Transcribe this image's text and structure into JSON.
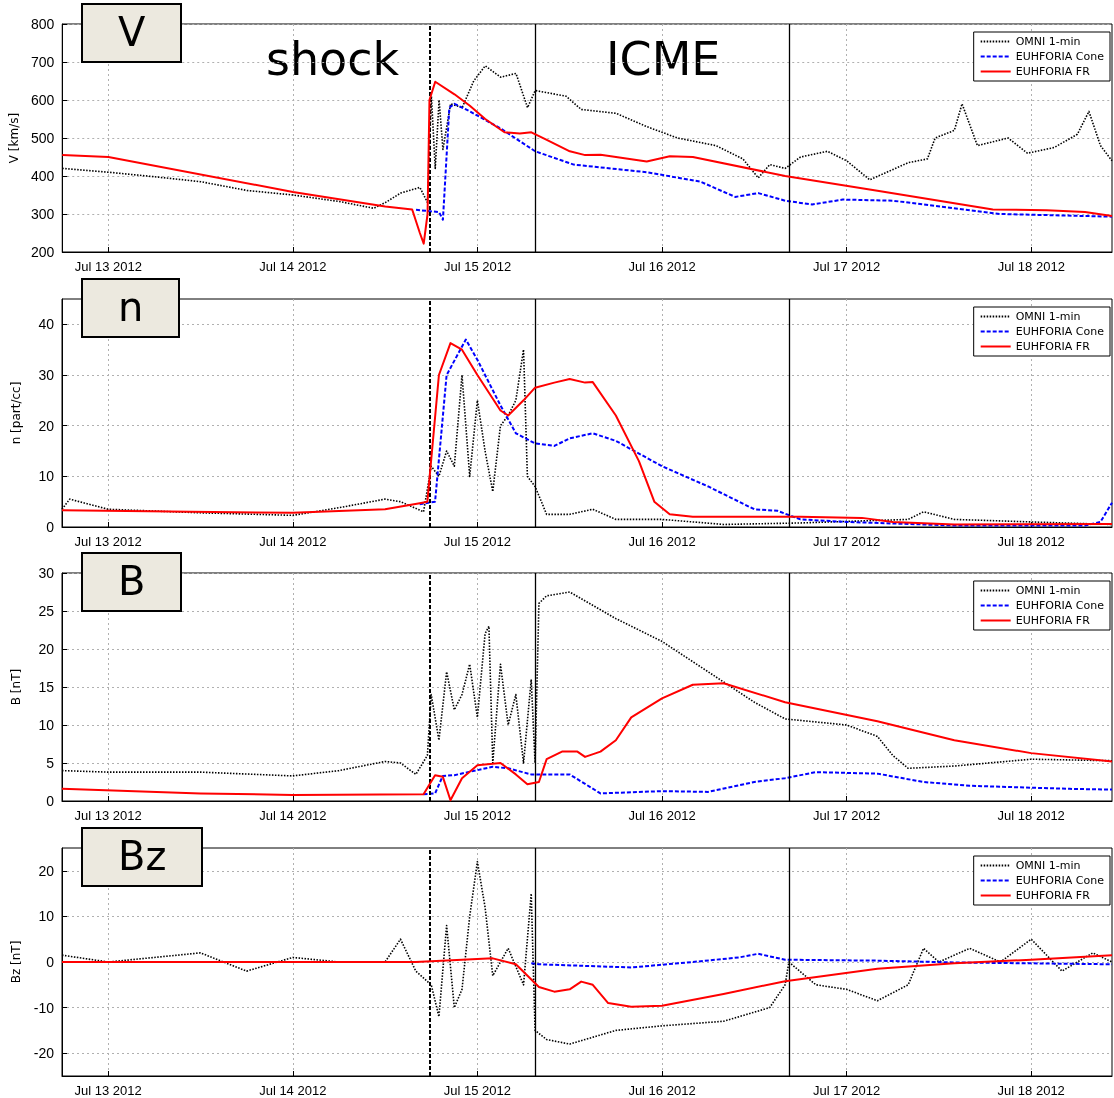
{
  "chart_data": [
    {
      "type": "line",
      "title": "V",
      "ylabel": "V [km/s]",
      "xlim": [
        "2012-07-12T18:00",
        "2012-07-18T10:30"
      ],
      "ylim": [
        200,
        800
      ],
      "yticks": [
        200,
        300,
        400,
        500,
        600,
        700,
        800
      ],
      "xticks": [
        {
          "value": "2012-07-13",
          "label": "Jul 13 2012"
        },
        {
          "value": "2012-07-14",
          "label": "Jul 14 2012"
        },
        {
          "value": "2012-07-15",
          "label": "Jul 15 2012"
        },
        {
          "value": "2012-07-16",
          "label": "Jul 16 2012"
        },
        {
          "value": "2012-07-17",
          "label": "Jul 17 2012"
        },
        {
          "value": "2012-07-18",
          "label": "Jul 18 2012"
        }
      ],
      "grid": true,
      "legend": "top right",
      "ref_lines": [
        {
          "axis": "x",
          "value": "2012-07-14T17:45",
          "color": "#000000",
          "line_style": "dashed"
        },
        {
          "axis": "x",
          "value": "2012-07-15T07:30",
          "color": "#000000",
          "line_style": "solid"
        },
        {
          "axis": "x",
          "value": "2012-07-16T16:30",
          "color": "#000000",
          "line_style": "solid"
        }
      ],
      "annotations": [
        "shock",
        "ICME"
      ],
      "series": [
        {
          "name": "OMNI 1-min",
          "color": "#000000",
          "line_style": "dotted",
          "x": [
            "2012-07-12T18:00",
            "2012-07-12T21:00",
            "2012-07-13T00:00",
            "2012-07-13T06:00",
            "2012-07-13T12:00",
            "2012-07-13T18:00",
            "2012-07-14T00:00",
            "2012-07-14T06:00",
            "2012-07-14T10:30",
            "2012-07-14T12:00",
            "2012-07-14T14:00",
            "2012-07-14T16:30",
            "2012-07-14T17:30",
            "2012-07-14T18:00",
            "2012-07-14T18:30",
            "2012-07-14T19:00",
            "2012-07-14T19:30",
            "2012-07-14T20:30",
            "2012-07-14T22:00",
            "2012-07-14T23:30",
            "2012-07-15T01:00",
            "2012-07-15T03:00",
            "2012-07-15T05:00",
            "2012-07-15T06:30",
            "2012-07-15T07:30",
            "2012-07-15T11:30",
            "2012-07-15T13:30",
            "2012-07-15T18:00",
            "2012-07-15T22:00",
            "2012-07-16T02:00",
            "2012-07-16T07:00",
            "2012-07-16T10:30",
            "2012-07-16T12:30",
            "2012-07-16T14:00",
            "2012-07-16T16:00",
            "2012-07-16T18:00",
            "2012-07-16T21:30",
            "2012-07-17T00:00",
            "2012-07-17T03:00",
            "2012-07-17T08:00",
            "2012-07-17T10:30",
            "2012-07-17T11:30",
            "2012-07-17T14:00",
            "2012-07-17T15:00",
            "2012-07-17T17:00",
            "2012-07-17T21:00",
            "2012-07-17T23:30",
            "2012-07-18T03:00",
            "2012-07-18T06:00",
            "2012-07-18T07:30",
            "2012-07-18T09:00",
            "2012-07-18T10:30"
          ],
          "values": [
            420,
            415,
            410,
            398,
            385,
            362,
            350,
            333,
            315,
            330,
            355,
            370,
            330,
            610,
            420,
            600,
            470,
            590,
            580,
            650,
            690,
            660,
            670,
            580,
            625,
            610,
            575,
            565,
            530,
            500,
            480,
            445,
            395,
            430,
            420,
            450,
            465,
            440,
            390,
            435,
            445,
            500,
            520,
            590,
            480,
            500,
            460,
            475,
            510,
            570,
            480,
            440
          ]
        },
        {
          "name": "EUHFORIA Cone",
          "color": "#0000ff",
          "line_style": "dashed",
          "x": [
            "2012-07-14T16:00",
            "2012-07-14T19:00",
            "2012-07-14T19:30",
            "2012-07-14T20:20",
            "2012-07-14T21:00",
            "2012-07-14T23:00",
            "2012-07-15T03:00",
            "2012-07-15T07:30",
            "2012-07-15T12:30",
            "2012-07-15T22:00",
            "2012-07-16T05:00",
            "2012-07-16T09:30",
            "2012-07-16T12:30",
            "2012-07-16T16:00",
            "2012-07-16T19:30",
            "2012-07-16T23:30",
            "2012-07-17T06:00",
            "2012-07-17T20:00",
            "2012-07-18T10:30"
          ],
          "values": [
            311,
            305,
            285,
            580,
            590,
            570,
            525,
            465,
            430,
            410,
            385,
            345,
            355,
            335,
            325,
            338,
            335,
            300,
            293
          ]
        },
        {
          "name": "EUHFORIA FR",
          "color": "#ff0000",
          "line_style": "solid",
          "x": [
            "2012-07-12T18:00",
            "2012-07-13T00:00",
            "2012-07-14T00:00",
            "2012-07-14T12:00",
            "2012-07-14T15:30",
            "2012-07-14T16:30",
            "2012-07-14T17:00",
            "2012-07-14T17:30",
            "2012-07-14T17:45",
            "2012-07-14T18:30",
            "2012-07-14T21:00",
            "2012-07-14T23:00",
            "2012-07-15T01:00",
            "2012-07-15T03:30",
            "2012-07-15T05:30",
            "2012-07-15T07:00",
            "2012-07-15T09:00",
            "2012-07-15T12:00",
            "2012-07-15T14:00",
            "2012-07-15T16:00",
            "2012-07-15T22:00",
            "2012-07-16T01:00",
            "2012-07-16T04:00",
            "2012-07-16T16:00",
            "2012-07-17T04:00",
            "2012-07-17T19:00",
            "2012-07-18T02:00",
            "2012-07-18T07:00",
            "2012-07-18T10:30"
          ],
          "values": [
            455,
            450,
            358,
            320,
            312,
            250,
            222,
            300,
            600,
            648,
            615,
            585,
            550,
            515,
            512,
            515,
            495,
            465,
            455,
            456,
            438,
            452,
            450,
            400,
            361,
            312,
            310,
            305,
            295
          ]
        }
      ]
    },
    {
      "type": "line",
      "title": "n",
      "ylabel": "n [part/cc]",
      "xlim": [
        "2012-07-12T18:00",
        "2012-07-18T10:30"
      ],
      "ylim": [
        0,
        45
      ],
      "yticks": [
        0,
        10,
        20,
        30,
        40
      ],
      "xticks": [
        {
          "value": "2012-07-13",
          "label": "Jul 13 2012"
        },
        {
          "value": "2012-07-14",
          "label": "Jul 14 2012"
        },
        {
          "value": "2012-07-15",
          "label": "Jul 15 2012"
        },
        {
          "value": "2012-07-16",
          "label": "Jul 16 2012"
        },
        {
          "value": "2012-07-17",
          "label": "Jul 17 2012"
        },
        {
          "value": "2012-07-18",
          "label": "Jul 18 2012"
        }
      ],
      "grid": true,
      "legend": "top right",
      "ref_lines": [
        {
          "axis": "x",
          "value": "2012-07-14T17:45",
          "color": "#000000",
          "line_style": "dashed"
        },
        {
          "axis": "x",
          "value": "2012-07-15T07:30",
          "color": "#000000",
          "line_style": "solid"
        },
        {
          "axis": "x",
          "value": "2012-07-16T16:30",
          "color": "#000000",
          "line_style": "solid"
        }
      ],
      "series": [
        {
          "name": "OMNI 1-min",
          "color": "#000000",
          "line_style": "dotted",
          "x": [
            "2012-07-12T18:00",
            "2012-07-12T19:00",
            "2012-07-13T00:00",
            "2012-07-13T12:00",
            "2012-07-14T00:00",
            "2012-07-14T06:00",
            "2012-07-14T12:00",
            "2012-07-14T14:00",
            "2012-07-14T17:00",
            "2012-07-14T18:00",
            "2012-07-14T19:00",
            "2012-07-14T20:00",
            "2012-07-14T21:00",
            "2012-07-14T22:00",
            "2012-07-14T23:00",
            "2012-07-15T00:00",
            "2012-07-15T01:00",
            "2012-07-15T02:00",
            "2012-07-15T03:00",
            "2012-07-15T04:00",
            "2012-07-15T05:00",
            "2012-07-15T06:00",
            "2012-07-15T06:30",
            "2012-07-15T07:30",
            "2012-07-15T09:00",
            "2012-07-15T12:00",
            "2012-07-15T15:00",
            "2012-07-15T18:00",
            "2012-07-16T00:00",
            "2012-07-16T08:00",
            "2012-07-16T18:00",
            "2012-07-17T08:00",
            "2012-07-17T10:00",
            "2012-07-17T14:00",
            "2012-07-18T00:00",
            "2012-07-18T10:30"
          ],
          "values": [
            3.5,
            5.5,
            3.5,
            2.8,
            2.3,
            3.8,
            5.5,
            5,
            3,
            12,
            10,
            15,
            12,
            30,
            10,
            25,
            15,
            7,
            20,
            22,
            25,
            35,
            10,
            8,
            2.5,
            2.5,
            3.5,
            1.5,
            1.5,
            0.5,
            0.8,
            1.5,
            3,
            1.5,
            1,
            0.5
          ]
        },
        {
          "name": "EUHFORIA Cone",
          "color": "#0000ff",
          "line_style": "dashed",
          "x": [
            "2012-07-14T16:30",
            "2012-07-14T18:30",
            "2012-07-14T20:00",
            "2012-07-14T22:30",
            "2012-07-15T00:00",
            "2012-07-15T03:00",
            "2012-07-15T05:00",
            "2012-07-15T07:30",
            "2012-07-15T10:00",
            "2012-07-15T12:00",
            "2012-07-15T15:00",
            "2012-07-15T18:00",
            "2012-07-16T00:00",
            "2012-07-16T06:00",
            "2012-07-16T12:00",
            "2012-07-16T15:00",
            "2012-07-16T18:00",
            "2012-07-17T00:00",
            "2012-07-17T14:00",
            "2012-07-18T07:00",
            "2012-07-18T09:00",
            "2012-07-18T10:30"
          ],
          "values": [
            4.5,
            5,
            30,
            37,
            33,
            24,
            18.5,
            16.5,
            16,
            17.5,
            18.5,
            17,
            12,
            8,
            3.5,
            3.2,
            1.5,
            1,
            0.3,
            0.3,
            1,
            4.8
          ]
        },
        {
          "name": "EUHFORIA FR",
          "color": "#ff0000",
          "line_style": "solid",
          "x": [
            "2012-07-12T18:00",
            "2012-07-14T00:00",
            "2012-07-14T12:00",
            "2012-07-14T16:30",
            "2012-07-14T17:30",
            "2012-07-14T19:00",
            "2012-07-14T20:30",
            "2012-07-14T22:00",
            "2012-07-15T00:00",
            "2012-07-15T03:00",
            "2012-07-15T04:00",
            "2012-07-15T06:00",
            "2012-07-15T07:30",
            "2012-07-15T10:00",
            "2012-07-15T12:00",
            "2012-07-15T14:00",
            "2012-07-15T15:00",
            "2012-07-15T18:00",
            "2012-07-15T21:00",
            "2012-07-15T23:00",
            "2012-07-16T01:00",
            "2012-07-16T04:00",
            "2012-07-16T18:00",
            "2012-07-17T02:00",
            "2012-07-17T06:00",
            "2012-07-17T14:00",
            "2012-07-18T10:30"
          ],
          "values": [
            3.3,
            2.8,
            3.5,
            4.7,
            5,
            30,
            36.3,
            35,
            30,
            23,
            22,
            25,
            27.5,
            28.5,
            29.2,
            28.5,
            28.6,
            22,
            13,
            5,
            2.5,
            2,
            2,
            1.8,
            1,
            0.5,
            0.6
          ]
        }
      ]
    },
    {
      "type": "line",
      "title": "B",
      "ylabel": "B [nT]",
      "xlim": [
        "2012-07-12T18:00",
        "2012-07-18T10:30"
      ],
      "ylim": [
        0,
        30
      ],
      "yticks": [
        0,
        5,
        10,
        15,
        20,
        25,
        30
      ],
      "xticks": [
        {
          "value": "2012-07-13",
          "label": "Jul 13 2012"
        },
        {
          "value": "2012-07-14",
          "label": "Jul 14 2012"
        },
        {
          "value": "2012-07-15",
          "label": "Jul 15 2012"
        },
        {
          "value": "2012-07-16",
          "label": "Jul 16 2012"
        },
        {
          "value": "2012-07-17",
          "label": "Jul 17 2012"
        },
        {
          "value": "2012-07-18",
          "label": "Jul 18 2012"
        }
      ],
      "grid": true,
      "legend": "top right",
      "ref_lines": [
        {
          "axis": "x",
          "value": "2012-07-14T17:45",
          "color": "#000000",
          "line_style": "dashed"
        },
        {
          "axis": "x",
          "value": "2012-07-15T07:30",
          "color": "#000000",
          "line_style": "solid"
        },
        {
          "axis": "x",
          "value": "2012-07-16T16:30",
          "color": "#000000",
          "line_style": "solid"
        }
      ],
      "series": [
        {
          "name": "OMNI 1-min",
          "color": "#000000",
          "line_style": "dotted",
          "x": [
            "2012-07-12T18:00",
            "2012-07-13T00:00",
            "2012-07-13T12:00",
            "2012-07-14T00:00",
            "2012-07-14T06:00",
            "2012-07-14T12:00",
            "2012-07-14T14:00",
            "2012-07-14T16:00",
            "2012-07-14T17:30",
            "2012-07-14T18:00",
            "2012-07-14T19:00",
            "2012-07-14T20:00",
            "2012-07-14T21:00",
            "2012-07-14T22:00",
            "2012-07-14T23:00",
            "2012-07-15T00:00",
            "2012-07-15T01:00",
            "2012-07-15T01:30",
            "2012-07-15T02:00",
            "2012-07-15T03:00",
            "2012-07-15T04:00",
            "2012-07-15T05:00",
            "2012-07-15T06:00",
            "2012-07-15T07:00",
            "2012-07-15T07:30",
            "2012-07-15T08:00",
            "2012-07-15T09:00",
            "2012-07-15T12:00",
            "2012-07-15T18:00",
            "2012-07-16T00:00",
            "2012-07-16T06:00",
            "2012-07-16T12:00",
            "2012-07-16T16:00",
            "2012-07-17T00:00",
            "2012-07-17T04:00",
            "2012-07-17T06:00",
            "2012-07-17T08:00",
            "2012-07-17T14:00",
            "2012-07-18T00:00",
            "2012-07-18T10:30"
          ],
          "values": [
            4,
            3.8,
            3.8,
            3.3,
            4,
            5.2,
            5,
            3.5,
            6,
            14,
            8,
            17,
            12,
            14,
            18,
            11,
            22,
            23,
            5,
            18,
            10,
            14,
            5,
            16,
            5,
            26,
            27,
            27.5,
            24,
            21,
            17,
            13,
            10.8,
            10,
            8.5,
            6,
            4.3,
            4.6,
            5.5,
            5.3
          ]
        },
        {
          "name": "EUHFORIA Cone",
          "color": "#0000ff",
          "line_style": "dashed",
          "x": [
            "2012-07-14T17:00",
            "2012-07-14T18:30",
            "2012-07-14T19:30",
            "2012-07-14T21:00",
            "2012-07-15T02:00",
            "2012-07-15T04:00",
            "2012-07-15T07:00",
            "2012-07-15T12:00",
            "2012-07-15T16:00",
            "2012-07-16T00:00",
            "2012-07-16T06:00",
            "2012-07-16T12:00",
            "2012-07-16T16:00",
            "2012-07-16T20:00",
            "2012-07-17T04:00",
            "2012-07-17T10:00",
            "2012-07-17T16:00",
            "2012-07-18T05:00",
            "2012-07-18T10:30"
          ],
          "values": [
            0.9,
            1,
            3.3,
            3.4,
            4.5,
            4.3,
            3.5,
            3.5,
            1,
            1.3,
            1.2,
            2.5,
            3,
            3.8,
            3.6,
            2.5,
            2,
            1.6,
            1.5
          ]
        },
        {
          "name": "EUHFORIA FR",
          "color": "#ff0000",
          "line_style": "solid",
          "x": [
            "2012-07-12T18:00",
            "2012-07-13T12:00",
            "2012-07-14T00:00",
            "2012-07-14T17:00",
            "2012-07-14T18:30",
            "2012-07-14T19:30",
            "2012-07-14T20:30",
            "2012-07-14T22:00",
            "2012-07-15T00:00",
            "2012-07-15T03:00",
            "2012-07-15T05:00",
            "2012-07-15T06:30",
            "2012-07-15T08:00",
            "2012-07-15T09:00",
            "2012-07-15T11:00",
            "2012-07-15T13:00",
            "2012-07-15T14:00",
            "2012-07-15T16:00",
            "2012-07-15T18:00",
            "2012-07-15T20:00",
            "2012-07-16T00:00",
            "2012-07-16T04:00",
            "2012-07-16T08:00",
            "2012-07-16T16:00",
            "2012-07-17T04:00",
            "2012-07-17T14:00",
            "2012-07-18T00:00",
            "2012-07-18T10:30"
          ],
          "values": [
            1.6,
            1,
            0.8,
            0.9,
            3.4,
            3.2,
            0.1,
            3,
            4.7,
            5,
            3.5,
            2.2,
            2.5,
            5.5,
            6.5,
            6.5,
            5.8,
            6.5,
            8,
            11,
            13.5,
            15.3,
            15.5,
            13,
            10.5,
            8,
            6.3,
            5.2
          ]
        }
      ]
    },
    {
      "type": "line",
      "title": "Bz",
      "ylabel": "Bz [nT]",
      "xlim": [
        "2012-07-12T18:00",
        "2012-07-18T10:30"
      ],
      "ylim": [
        -25,
        25
      ],
      "yticks": [
        -20,
        -10,
        0,
        10,
        20
      ],
      "xticks": [
        {
          "value": "2012-07-13",
          "label": "Jul 13 2012"
        },
        {
          "value": "2012-07-14",
          "label": "Jul 14 2012"
        },
        {
          "value": "2012-07-15",
          "label": "Jul 15 2012"
        },
        {
          "value": "2012-07-16",
          "label": "Jul 16 2012"
        },
        {
          "value": "2012-07-17",
          "label": "Jul 17 2012"
        },
        {
          "value": "2012-07-18",
          "label": "Jul 18 2012"
        }
      ],
      "grid": true,
      "legend": "top right",
      "ref_lines": [
        {
          "axis": "x",
          "value": "2012-07-14T17:45",
          "color": "#000000",
          "line_style": "dashed"
        },
        {
          "axis": "x",
          "value": "2012-07-15T07:30",
          "color": "#000000",
          "line_style": "solid"
        },
        {
          "axis": "x",
          "value": "2012-07-16T16:30",
          "color": "#000000",
          "line_style": "solid"
        }
      ],
      "series": [
        {
          "name": "OMNI 1-min",
          "color": "#000000",
          "line_style": "dotted",
          "x": [
            "2012-07-12T18:00",
            "2012-07-13T00:00",
            "2012-07-13T06:00",
            "2012-07-13T12:00",
            "2012-07-13T18:00",
            "2012-07-14T00:00",
            "2012-07-14T06:00",
            "2012-07-14T12:00",
            "2012-07-14T14:00",
            "2012-07-14T16:00",
            "2012-07-14T18:00",
            "2012-07-14T19:00",
            "2012-07-14T20:00",
            "2012-07-14T21:00",
            "2012-07-14T22:00",
            "2012-07-14T23:00",
            "2012-07-15T00:00",
            "2012-07-15T01:00",
            "2012-07-15T02:00",
            "2012-07-15T04:00",
            "2012-07-15T06:00",
            "2012-07-15T07:00",
            "2012-07-15T07:30",
            "2012-07-15T09:00",
            "2012-07-15T12:00",
            "2012-07-15T18:00",
            "2012-07-16T00:00",
            "2012-07-16T08:00",
            "2012-07-16T14:00",
            "2012-07-16T16:00",
            "2012-07-16T16:30",
            "2012-07-16T20:00",
            "2012-07-17T00:00",
            "2012-07-17T04:00",
            "2012-07-17T08:00",
            "2012-07-17T10:00",
            "2012-07-17T12:00",
            "2012-07-17T16:00",
            "2012-07-17T20:00",
            "2012-07-18T00:00",
            "2012-07-18T04:00",
            "2012-07-18T08:00",
            "2012-07-18T10:30"
          ],
          "values": [
            1.5,
            0,
            1,
            2,
            -2,
            1,
            0,
            0,
            5,
            -2,
            -5,
            -12,
            8,
            -10,
            -6,
            10,
            22,
            12,
            -3,
            3,
            -5,
            15,
            -15,
            -17,
            -18,
            -15,
            -14,
            -13,
            -10,
            -5,
            0,
            -5,
            -6,
            -8.5,
            -5,
            3,
            0,
            3,
            0,
            5,
            -2,
            2,
            0
          ]
        },
        {
          "name": "EUHFORIA Cone",
          "color": "#0000ff",
          "line_style": "dashed",
          "x": [
            "2012-07-15T07:00",
            "2012-07-15T08:00",
            "2012-07-15T20:00",
            "2012-07-16T04:00",
            "2012-07-16T10:00",
            "2012-07-16T12:30",
            "2012-07-16T16:00",
            "2012-07-17T04:00",
            "2012-07-17T14:00",
            "2012-07-18T10:30"
          ],
          "values": [
            -0.3,
            -0.5,
            -1.2,
            0,
            1,
            1.8,
            0.5,
            0.3,
            -0.1,
            -0.5
          ]
        },
        {
          "name": "EUHFORIA FR",
          "color": "#ff0000",
          "line_style": "solid",
          "x": [
            "2012-07-12T18:00",
            "2012-07-14T16:00",
            "2012-07-14T22:00",
            "2012-07-15T02:00",
            "2012-07-15T05:00",
            "2012-07-15T08:00",
            "2012-07-15T10:00",
            "2012-07-15T12:00",
            "2012-07-15T13:30",
            "2012-07-15T15:00",
            "2012-07-15T17:00",
            "2012-07-15T20:00",
            "2012-07-16T00:00",
            "2012-07-16T08:00",
            "2012-07-16T16:00",
            "2012-07-17T04:00",
            "2012-07-17T14:00",
            "2012-07-18T00:00",
            "2012-07-18T10:30"
          ],
          "values": [
            0,
            0,
            0.5,
            0.8,
            -0.5,
            -5.5,
            -6.5,
            -6,
            -4.3,
            -5,
            -9,
            -9.8,
            -9.6,
            -7,
            -4.2,
            -1.5,
            -0.3,
            0.5,
            1.5
          ]
        }
      ]
    }
  ]
}
